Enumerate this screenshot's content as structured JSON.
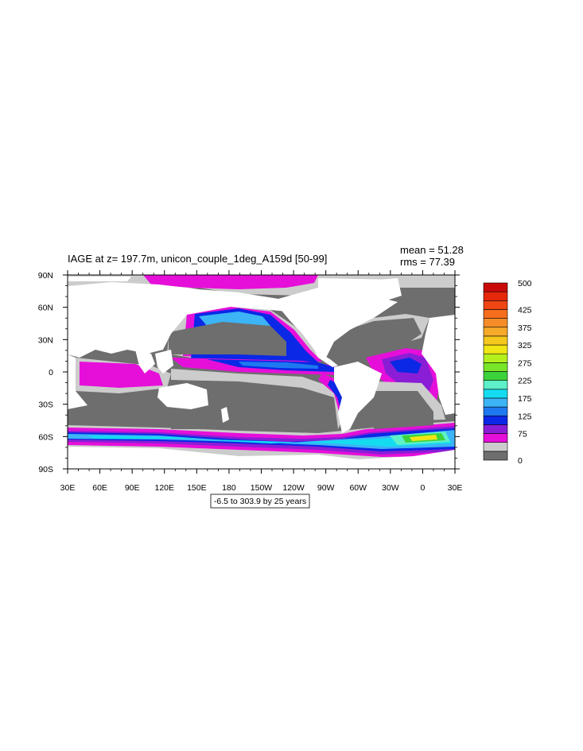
{
  "title": "IAGE at z= 197.7m, unicon_couple_1deg_A159d [50-99]",
  "stats": {
    "mean": "mean = 51.28",
    "rms": "rms = 77.39"
  },
  "footnote": "-6.5 to 303.9 by 25 years",
  "colors": {
    "land": "#ffffff",
    "ocean_base": "#6e6e6e",
    "contour_light_gray": "#cccccc",
    "magenta": "#e60fd9",
    "purple": "#8a1ed6",
    "blue": "#0a28e6",
    "mid_blue": "#1e78f0",
    "light_blue": "#3cb4f5",
    "cyan": "#14dcf0",
    "aqua": "#5ef0c8",
    "green": "#3cd23c",
    "yellow": "#f0e614"
  },
  "chart_data": {
    "type": "heatmap",
    "lon_range": [
      30,
      390
    ],
    "lat_range": [
      -90,
      90
    ],
    "x_ticks": [
      "30E",
      "60E",
      "90E",
      "120E",
      "150E",
      "180",
      "150W",
      "120W",
      "90W",
      "60W",
      "30W",
      "0",
      "30E"
    ],
    "y_ticks": [
      "90N",
      "60N",
      "30N",
      "0",
      "30S",
      "60S",
      "90S"
    ],
    "colorbar": {
      "levels": [
        0,
        25,
        50,
        75,
        100,
        125,
        150,
        175,
        200,
        225,
        250,
        275,
        300,
        325,
        350,
        375,
        400,
        425,
        450,
        475,
        500
      ],
      "labels": [
        "0",
        "75",
        "125",
        "175",
        "225",
        "275",
        "325",
        "375",
        "425",
        "500"
      ],
      "label_levels": [
        0,
        75,
        125,
        175,
        225,
        275,
        325,
        375,
        425,
        500
      ],
      "colors": [
        "#6e6e6e",
        "#cccccc",
        "#e60fd9",
        "#8a1ed6",
        "#0a28e6",
        "#1e78f0",
        "#3cb4f5",
        "#14dcf0",
        "#5ef0c8",
        "#3cd23c",
        "#78e628",
        "#b4f01e",
        "#f0e614",
        "#f5c81e",
        "#f5aa28",
        "#f58c28",
        "#f56e1e",
        "#ee4614",
        "#e6280a",
        "#c80a0a"
      ]
    }
  }
}
